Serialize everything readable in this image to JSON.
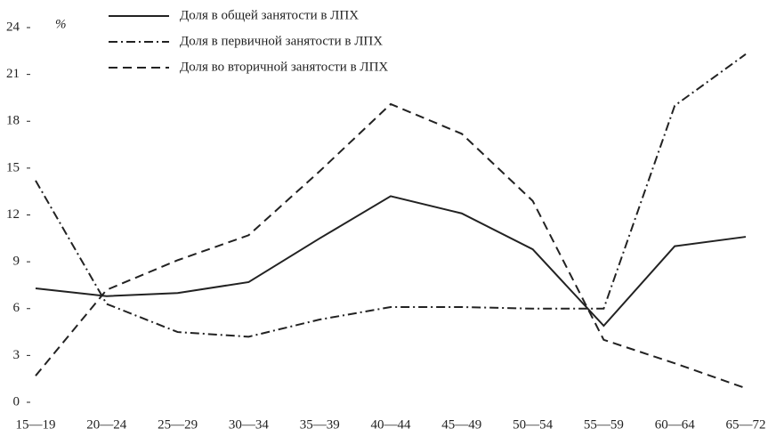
{
  "chart_data": {
    "type": "line",
    "y_unit": "%",
    "categories": [
      "15—19",
      "20—24",
      "25—29",
      "30—34",
      "35—39",
      "40—44",
      "45—49",
      "50—54",
      "55—59",
      "60—64",
      "65—72"
    ],
    "series": [
      {
        "name": "Доля в общей занятости в ЛПХ",
        "color": "#222222",
        "dash": "solid",
        "values": [
          7.3,
          6.8,
          7.0,
          7.7,
          10.5,
          13.2,
          12.1,
          9.8,
          4.9,
          10.0,
          10.6
        ]
      },
      {
        "name": "Доля в первичной занятости в ЛПХ",
        "color": "#222222",
        "dash": "dashdot",
        "values": [
          14.2,
          6.3,
          4.5,
          4.2,
          5.3,
          6.1,
          6.1,
          6.0,
          6.0,
          19.0,
          22.3
        ]
      },
      {
        "name": "Доля во вторичной занятости в ЛПХ",
        "color": "#222222",
        "dash": "dashed",
        "values": [
          1.7,
          7.2,
          9.1,
          10.7,
          14.8,
          19.1,
          17.2,
          12.9,
          4.0,
          2.5,
          0.9
        ]
      }
    ],
    "ylim": [
      0,
      24
    ],
    "yticks": [
      0,
      3,
      6,
      9,
      12,
      15,
      18,
      21,
      24
    ],
    "grid": false
  }
}
